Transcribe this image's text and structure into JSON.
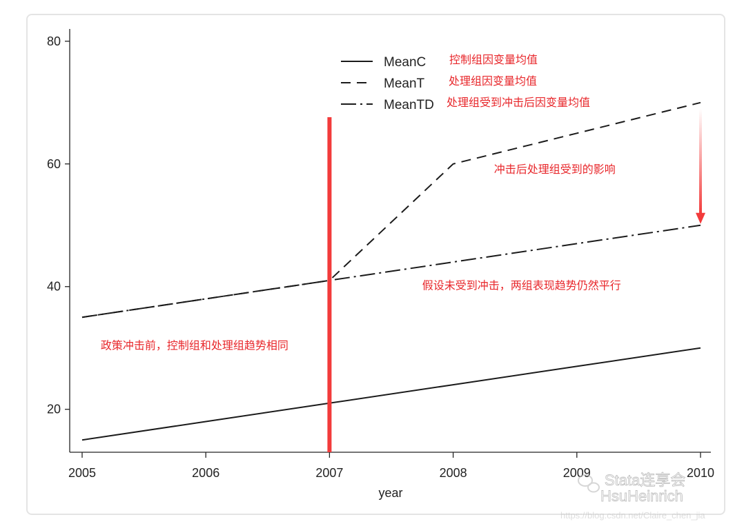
{
  "chart_data": {
    "type": "line",
    "x": [
      2005,
      2006,
      2007,
      2008,
      2009,
      2010
    ],
    "series": [
      {
        "name": "MeanC",
        "style": "solid",
        "values": [
          15,
          18,
          21,
          24,
          27,
          30
        ]
      },
      {
        "name": "MeanT",
        "style": "dashed",
        "values": [
          35,
          38,
          41,
          60,
          65,
          70
        ]
      },
      {
        "name": "MeanTD",
        "style": "dash-dot",
        "values": [
          35,
          38,
          41,
          44,
          47,
          50
        ]
      }
    ],
    "xlabel": "year",
    "ylabel": "",
    "xlim": [
      2005,
      2010
    ],
    "ylim": [
      13,
      82
    ],
    "xticks": [
      2005,
      2006,
      2007,
      2008,
      2009,
      2010
    ],
    "yticks": [
      20,
      40,
      60,
      80
    ],
    "grid": false,
    "legend_position": "top-right",
    "legend_notes": [
      "控制组因变量均值",
      "处理组因变量均值",
      "处理组受到冲击后因变量均值"
    ],
    "annotations": [
      {
        "text": "冲击后处理组受到的影响",
        "x": 2008.33,
        "y": 58.5
      },
      {
        "text": "假设未受到冲击，两组表现趋势仍然平行",
        "x": 2007.75,
        "y": 39.6
      },
      {
        "text": "政策冲击前，控制组和处理组趋势相同",
        "x": 2005.15,
        "y": 29.8
      }
    ],
    "policy_line": {
      "x": 2007,
      "color": "#f23b3b"
    },
    "effect_arrow": {
      "x": 2010,
      "from": 69,
      "to": 50,
      "color": "#f23b3b"
    },
    "line_color": "#1a1a1a",
    "annotation_color": "#e8272b"
  },
  "watermark": {
    "line1": "Stata连享会",
    "line2": "HsuHeinrich",
    "url": "https://blog.csdn.net/Claire_chen_jia",
    "icon": "wechat-icon"
  }
}
